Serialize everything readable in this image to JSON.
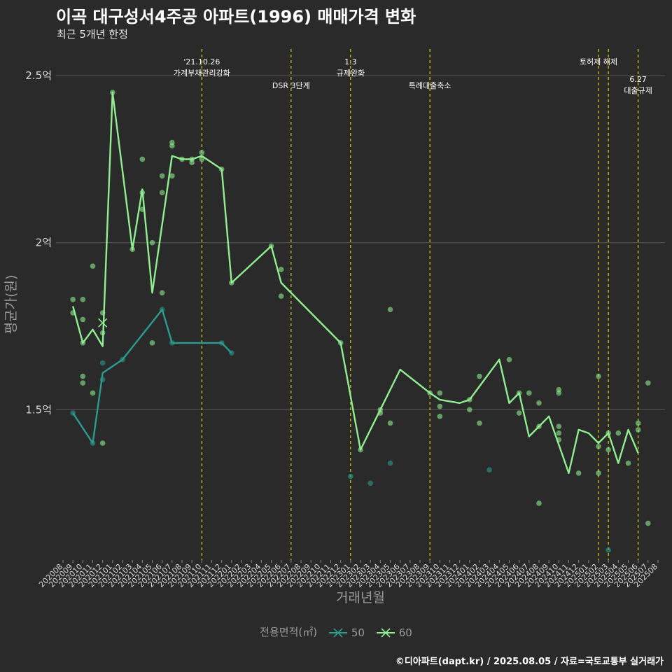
{
  "title": "이곡 대구성서4주공 아파트(1996) 매매가격 변화",
  "subtitle": "최근 5개년 한정",
  "caption": "©디아파트(dapt.kr) / 2025.08.05 / 자료=국토교통부 실거래가",
  "legend": {
    "title": "전용면적(㎡)",
    "items": [
      {
        "label": "50",
        "color": "#2a9d8f"
      },
      {
        "label": "60",
        "color": "#90ee90"
      }
    ]
  },
  "chart_data": {
    "type": "line",
    "xlabel": "거래년월",
    "ylabel": "평균가(원)",
    "ylim": [
      1.05,
      2.58
    ],
    "yticks": [
      {
        "value": 1.5,
        "label": "1.5억"
      },
      {
        "value": 2.0,
        "label": "2억"
      },
      {
        "value": 2.5,
        "label": "2.5억"
      }
    ],
    "grid": true,
    "legend_position": "bottom",
    "x_categories": [
      "202008",
      "202009",
      "202010",
      "202011",
      "202012",
      "202101",
      "202102",
      "202103",
      "202104",
      "202105",
      "202106",
      "202107",
      "202108",
      "202109",
      "202110",
      "202111",
      "202112",
      "202201",
      "202202",
      "202203",
      "202204",
      "202205",
      "202206",
      "202207",
      "202208",
      "202209",
      "202210",
      "202211",
      "202212",
      "202301",
      "202302",
      "202303",
      "202304",
      "202305",
      "202306",
      "202307",
      "202308",
      "202309",
      "202310",
      "202311",
      "202312",
      "202401",
      "202402",
      "202403",
      "202404",
      "202405",
      "202406",
      "202407",
      "202408",
      "202409",
      "202410",
      "202411",
      "202412",
      "202501",
      "202502",
      "202503",
      "202504",
      "202505",
      "202506",
      "202507",
      "202508"
    ],
    "annotations": [
      {
        "x": "202110",
        "lines": [
          "'21.10.26",
          "가계부채관리강화"
        ],
        "row": 0
      },
      {
        "x": "202207",
        "lines": [
          "DSR 3단계"
        ],
        "row": 1
      },
      {
        "x": "202301",
        "lines": [
          "1.3",
          "규제완화"
        ],
        "row": 0
      },
      {
        "x": "202309",
        "lines": [
          "특례대출축소"
        ],
        "row": 1
      },
      {
        "x": "202502",
        "lines": [
          "토허제 해제"
        ],
        "row": 0
      },
      {
        "x": "202503",
        "lines": [],
        "row": 0
      },
      {
        "x": "202506",
        "lines": [
          "6.27",
          "대출규제"
        ],
        "row": 2
      }
    ],
    "series": [
      {
        "name": "50",
        "color": "#2a9d8f",
        "line": [
          {
            "x": "202009",
            "y": 1.49
          },
          {
            "x": "202011",
            "y": 1.4
          },
          {
            "x": "202012",
            "y": 1.61
          },
          {
            "x": "202102",
            "y": 1.65
          },
          {
            "x": "202106",
            "y": 1.8
          },
          {
            "x": "202107",
            "y": 1.7
          },
          {
            "x": "202112",
            "y": 1.7
          },
          {
            "x": "202201",
            "y": 1.67
          }
        ],
        "points": [
          {
            "x": "202009",
            "y": 1.49
          },
          {
            "x": "202011",
            "y": 1.4
          },
          {
            "x": "202012",
            "y": 1.59
          },
          {
            "x": "202012",
            "y": 1.64
          },
          {
            "x": "202102",
            "y": 1.65
          },
          {
            "x": "202106",
            "y": 1.8
          },
          {
            "x": "202107",
            "y": 1.7
          },
          {
            "x": "202112",
            "y": 1.7
          },
          {
            "x": "202201",
            "y": 1.67
          },
          {
            "x": "202301",
            "y": 1.3
          },
          {
            "x": "202303",
            "y": 1.28
          },
          {
            "x": "202305",
            "y": 1.34
          },
          {
            "x": "202403",
            "y": 1.32
          },
          {
            "x": "202503",
            "y": 1.08
          }
        ]
      },
      {
        "name": "60",
        "color": "#90ee90",
        "line": [
          {
            "x": "202009",
            "y": 1.81
          },
          {
            "x": "202010",
            "y": 1.7
          },
          {
            "x": "202011",
            "y": 1.74
          },
          {
            "x": "202012",
            "y": 1.69
          },
          {
            "x": "202101",
            "y": 2.45
          },
          {
            "x": "202103",
            "y": 1.98
          },
          {
            "x": "202104",
            "y": 2.16
          },
          {
            "x": "202105",
            "y": 1.85
          },
          {
            "x": "202107",
            "y": 2.26
          },
          {
            "x": "202108",
            "y": 2.25
          },
          {
            "x": "202109",
            "y": 2.25
          },
          {
            "x": "202110",
            "y": 2.26
          },
          {
            "x": "202112",
            "y": 2.22
          },
          {
            "x": "202201",
            "y": 1.88
          },
          {
            "x": "202205",
            "y": 1.99
          },
          {
            "x": "202206",
            "y": 1.88
          },
          {
            "x": "202212",
            "y": 1.7
          },
          {
            "x": "202302",
            "y": 1.38
          },
          {
            "x": "202304",
            "y": 1.5
          },
          {
            "x": "202306",
            "y": 1.62
          },
          {
            "x": "202309",
            "y": 1.55
          },
          {
            "x": "202310",
            "y": 1.53
          },
          {
            "x": "202312",
            "y": 1.52
          },
          {
            "x": "202401",
            "y": 1.53
          },
          {
            "x": "202404",
            "y": 1.65
          },
          {
            "x": "202405",
            "y": 1.52
          },
          {
            "x": "202406",
            "y": 1.55
          },
          {
            "x": "202407",
            "y": 1.42
          },
          {
            "x": "202409",
            "y": 1.48
          },
          {
            "x": "202411",
            "y": 1.31
          },
          {
            "x": "202412",
            "y": 1.44
          },
          {
            "x": "202501",
            "y": 1.43
          },
          {
            "x": "202502",
            "y": 1.4
          },
          {
            "x": "202503",
            "y": 1.43
          },
          {
            "x": "202504",
            "y": 1.34
          },
          {
            "x": "202505",
            "y": 1.44
          },
          {
            "x": "202506",
            "y": 1.37
          }
        ],
        "points": [
          {
            "x": "202009",
            "y": 1.83
          },
          {
            "x": "202009",
            "y": 1.79
          },
          {
            "x": "202010",
            "y": 1.83
          },
          {
            "x": "202010",
            "y": 1.77
          },
          {
            "x": "202010",
            "y": 1.7
          },
          {
            "x": "202010",
            "y": 1.6
          },
          {
            "x": "202010",
            "y": 1.58
          },
          {
            "x": "202011",
            "y": 1.93
          },
          {
            "x": "202011",
            "y": 1.55
          },
          {
            "x": "202012",
            "y": 1.79
          },
          {
            "x": "202012",
            "y": 1.73
          },
          {
            "x": "202012",
            "y": 1.4
          },
          {
            "x": "202101",
            "y": 2.45
          },
          {
            "x": "202103",
            "y": 1.98
          },
          {
            "x": "202104",
            "y": 2.25
          },
          {
            "x": "202104",
            "y": 2.15
          },
          {
            "x": "202104",
            "y": 2.1
          },
          {
            "x": "202105",
            "y": 2.0
          },
          {
            "x": "202105",
            "y": 1.7
          },
          {
            "x": "202106",
            "y": 2.2
          },
          {
            "x": "202106",
            "y": 2.15
          },
          {
            "x": "202106",
            "y": 1.85
          },
          {
            "x": "202107",
            "y": 2.3
          },
          {
            "x": "202107",
            "y": 2.29
          },
          {
            "x": "202107",
            "y": 2.2
          },
          {
            "x": "202108",
            "y": 2.25
          },
          {
            "x": "202109",
            "y": 2.25
          },
          {
            "x": "202109",
            "y": 2.24
          },
          {
            "x": "202110",
            "y": 2.27
          },
          {
            "x": "202110",
            "y": 2.25
          },
          {
            "x": "202112",
            "y": 2.22
          },
          {
            "x": "202201",
            "y": 1.88
          },
          {
            "x": "202205",
            "y": 1.99
          },
          {
            "x": "202206",
            "y": 1.92
          },
          {
            "x": "202206",
            "y": 1.84
          },
          {
            "x": "202212",
            "y": 1.7
          },
          {
            "x": "202302",
            "y": 1.38
          },
          {
            "x": "202304",
            "y": 1.5
          },
          {
            "x": "202304",
            "y": 1.49
          },
          {
            "x": "202305",
            "y": 1.8
          },
          {
            "x": "202305",
            "y": 1.46
          },
          {
            "x": "202309",
            "y": 1.55
          },
          {
            "x": "202310",
            "y": 1.55
          },
          {
            "x": "202310",
            "y": 1.51
          },
          {
            "x": "202310",
            "y": 1.48
          },
          {
            "x": "202401",
            "y": 1.53
          },
          {
            "x": "202401",
            "y": 1.5
          },
          {
            "x": "202402",
            "y": 1.6
          },
          {
            "x": "202402",
            "y": 1.46
          },
          {
            "x": "202405",
            "y": 1.65
          },
          {
            "x": "202406",
            "y": 1.55
          },
          {
            "x": "202406",
            "y": 1.49
          },
          {
            "x": "202407",
            "y": 1.55
          },
          {
            "x": "202408",
            "y": 1.52
          },
          {
            "x": "202408",
            "y": 1.45
          },
          {
            "x": "202408",
            "y": 1.22
          },
          {
            "x": "202410",
            "y": 1.56
          },
          {
            "x": "202410",
            "y": 1.55
          },
          {
            "x": "202410",
            "y": 1.45
          },
          {
            "x": "202410",
            "y": 1.43
          },
          {
            "x": "202410",
            "y": 1.41
          },
          {
            "x": "202412",
            "y": 1.31
          },
          {
            "x": "202502",
            "y": 1.6
          },
          {
            "x": "202502",
            "y": 1.39
          },
          {
            "x": "202502",
            "y": 1.31
          },
          {
            "x": "202503",
            "y": 1.43
          },
          {
            "x": "202503",
            "y": 1.38
          },
          {
            "x": "202504",
            "y": 1.43
          },
          {
            "x": "202505",
            "y": 1.34
          },
          {
            "x": "202506",
            "y": 1.46
          },
          {
            "x": "202506",
            "y": 1.44
          },
          {
            "x": "202507",
            "y": 1.58
          },
          {
            "x": "202507",
            "y": 1.16
          }
        ]
      }
    ]
  }
}
